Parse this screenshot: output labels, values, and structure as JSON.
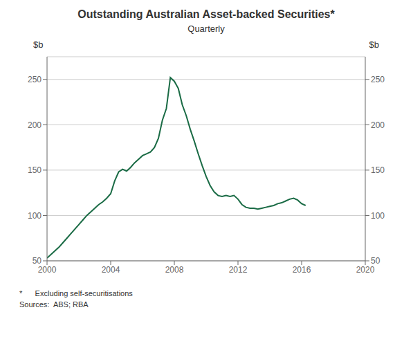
{
  "chart_data": {
    "type": "line",
    "title": "Outstanding Australian Asset-backed Securities*",
    "subtitle": "Quarterly",
    "ylabel": "$b",
    "y2label": "$b",
    "annotations": [
      "*      Excluding self-securitisations",
      "Sources:  ABS; RBA"
    ],
    "x": [
      2000.0,
      2000.25,
      2000.5,
      2000.75,
      2001.0,
      2001.25,
      2001.5,
      2001.75,
      2002.0,
      2002.25,
      2002.5,
      2002.75,
      2003.0,
      2003.25,
      2003.5,
      2003.75,
      2004.0,
      2004.25,
      2004.5,
      2004.75,
      2005.0,
      2005.25,
      2005.5,
      2005.75,
      2006.0,
      2006.25,
      2006.5,
      2006.75,
      2007.0,
      2007.25,
      2007.5,
      2007.75,
      2008.0,
      2008.25,
      2008.5,
      2008.75,
      2009.0,
      2009.25,
      2009.5,
      2009.75,
      2010.0,
      2010.25,
      2010.5,
      2010.75,
      2011.0,
      2011.25,
      2011.5,
      2011.75,
      2012.0,
      2012.25,
      2012.5,
      2012.75,
      2013.0,
      2013.25,
      2013.5,
      2013.75,
      2014.0,
      2014.25,
      2014.5,
      2014.75,
      2015.0,
      2015.25,
      2015.5,
      2015.75,
      2016.0,
      2016.25
    ],
    "values": [
      53,
      57,
      61,
      65,
      70,
      75,
      80,
      85,
      90,
      95,
      100,
      104,
      108,
      112,
      115,
      119,
      124,
      138,
      148,
      151,
      149,
      153,
      158,
      162,
      166,
      168,
      170,
      175,
      185,
      205,
      218,
      252,
      248,
      240,
      222,
      210,
      195,
      182,
      168,
      155,
      143,
      133,
      126,
      122,
      121,
      122,
      121,
      122,
      118,
      112,
      109,
      108,
      108,
      107,
      108,
      109,
      110,
      111,
      113,
      114,
      116,
      118,
      119,
      117,
      113,
      111
    ],
    "color": "#1a6b45",
    "xlim": [
      2000,
      2020
    ],
    "xticks": [
      2000,
      2004,
      2008,
      2012,
      2016,
      2020
    ],
    "ylim": [
      50,
      275
    ],
    "yticks": [
      50,
      100,
      150,
      200,
      250
    ],
    "y2lim": [
      50,
      275
    ],
    "y2ticks": [
      50,
      100,
      150,
      200,
      250
    ],
    "grid": true
  }
}
